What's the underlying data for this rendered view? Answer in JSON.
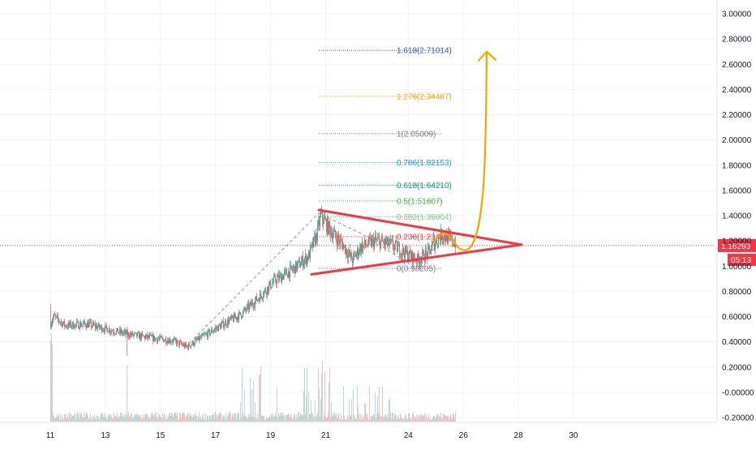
{
  "chart_data": {
    "type": "candlestick",
    "price_axis": {
      "ticks": [
        "3.00000",
        "2.80000",
        "2.60000",
        "2.40000",
        "2.20000",
        "2.00000",
        "1.80000",
        "1.60000",
        "1.40000",
        "1.20000",
        "1.00000",
        "0.80000",
        "0.60000",
        "0.40000",
        "0.20000",
        "-0.00000",
        "-0.20000"
      ],
      "ylim": [
        -0.22,
        3.04
      ]
    },
    "date_axis": {
      "ticks": [
        {
          "label": "11",
          "day": 11
        },
        {
          "label": "13",
          "day": 13
        },
        {
          "label": "15",
          "day": 15
        },
        {
          "label": "17",
          "day": 17
        },
        {
          "label": "19",
          "day": 19
        },
        {
          "label": "21",
          "day": 21
        },
        {
          "label": "24",
          "day": 24
        },
        {
          "label": "26",
          "day": 26
        },
        {
          "label": "28",
          "day": 28
        },
        {
          "label": "30",
          "day": 30
        }
      ]
    },
    "current_price": {
      "value": 1.16293,
      "label": "1.16293",
      "countdown": "05:13",
      "color": "#f23645"
    },
    "fibonacci": [
      {
        "label": "0(0.98205)",
        "price": 0.98205,
        "color": "#787b86"
      },
      {
        "label": "0.236(1.23410)",
        "price": 1.2341,
        "color": "#f23645"
      },
      {
        "label": "0.382(1.39004)",
        "price": 1.39004,
        "color": "#81c784"
      },
      {
        "label": "0.5(1.51607)",
        "price": 1.51607,
        "color": "#4caf50"
      },
      {
        "label": "0.618(1.64210)",
        "price": 1.6421,
        "color": "#089981"
      },
      {
        "label": "0.786(1.82153)",
        "price": 1.82153,
        "color": "#2196f3"
      },
      {
        "label": "1(2.05009)",
        "price": 2.05009,
        "color": "#787b86"
      },
      {
        "label": "1.276(2.34487)",
        "price": 2.34487,
        "color": "#f7a600"
      },
      {
        "label": "1.618(2.71014)",
        "price": 2.71014,
        "color": "#3f51b5"
      }
    ],
    "colors": {
      "up": "#26a69a",
      "down": "#ef5350",
      "triangle": "#f23645",
      "projection": "#f7a600",
      "guide": "#9598a1"
    }
  }
}
